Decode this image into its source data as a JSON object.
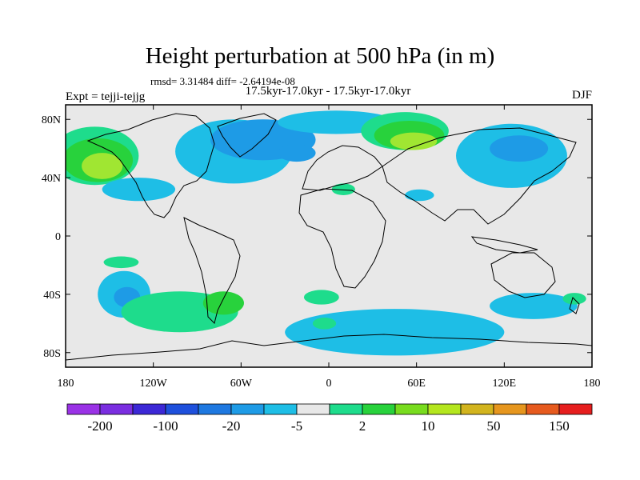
{
  "header": {
    "title": "Height perturbation at 500 hPa (in m)",
    "stats": "rmsd= 3.31484 diff= -2.64194e-08",
    "subtitle": "17.5kyr-17.0kyr - 17.5kyr-17.0kyr",
    "left_label": "Expt = tejji-tejjg",
    "right_label": "DJF"
  },
  "chart_data": {
    "type": "heatmap",
    "title": "Height perturbation at 500 hPa (in m)",
    "projection": "cylindrical-equidistant",
    "xlim": [
      -180,
      180
    ],
    "ylim": [
      -90,
      90
    ],
    "x_ticks": [
      {
        "value": -180,
        "label": "180"
      },
      {
        "value": -120,
        "label": "120W"
      },
      {
        "value": -60,
        "label": "60W"
      },
      {
        "value": 0,
        "label": "0"
      },
      {
        "value": 60,
        "label": "60E"
      },
      {
        "value": 120,
        "label": "120E"
      },
      {
        "value": 180,
        "label": "180"
      }
    ],
    "y_ticks": [
      {
        "value": 80,
        "label": "80N"
      },
      {
        "value": 40,
        "label": "40N"
      },
      {
        "value": 0,
        "label": "0"
      },
      {
        "value": -40,
        "label": "40S"
      },
      {
        "value": -80,
        "label": "80S"
      }
    ],
    "background_color": "#e8e8e8",
    "colorbar": {
      "levels": [
        "-200",
        "-100",
        "-20",
        "-5",
        "2",
        "10",
        "50",
        "150"
      ],
      "colors": [
        "#9a32e6",
        "#7a2ee0",
        "#3c28d6",
        "#1e50dc",
        "#1e78e0",
        "#1e9be6",
        "#1ebee6",
        "#e8e8e8",
        "#1edc8c",
        "#28d23c",
        "#78dc1e",
        "#b4e61e",
        "#d2b41e",
        "#e6961e",
        "#e65a1e",
        "#e61e1e"
      ]
    },
    "regions": [
      {
        "value": 5,
        "color": "#1edc8c",
        "cx": -160,
        "cy": 55,
        "rx": 30,
        "ry": 20
      },
      {
        "value": 12,
        "color": "#28d23c",
        "cx": -158,
        "cy": 52,
        "rx": 24,
        "ry": 15
      },
      {
        "value": 15,
        "color": "#a0e632",
        "cx": -155,
        "cy": 48,
        "rx": 14,
        "ry": 9
      },
      {
        "value": -3,
        "color": "#1ebee6",
        "cx": -130,
        "cy": 32,
        "rx": 25,
        "ry": 8
      },
      {
        "value": -3,
        "color": "#1ebee6",
        "cx": -65,
        "cy": 58,
        "rx": 40,
        "ry": 22
      },
      {
        "value": -10,
        "color": "#1e9be6",
        "cx": -45,
        "cy": 66,
        "rx": 36,
        "ry": 14
      },
      {
        "value": -3,
        "color": "#1ebee6",
        "cx": 5,
        "cy": 78,
        "rx": 40,
        "ry": 8
      },
      {
        "value": -10,
        "color": "#1e9be6",
        "cx": -22,
        "cy": 57,
        "rx": 13,
        "ry": 6
      },
      {
        "value": 5,
        "color": "#1edc8c",
        "cx": 52,
        "cy": 72,
        "rx": 30,
        "ry": 13
      },
      {
        "value": 12,
        "color": "#28d23c",
        "cx": 55,
        "cy": 69,
        "rx": 24,
        "ry": 10
      },
      {
        "value": 15,
        "color": "#a0e632",
        "cx": 58,
        "cy": 65,
        "rx": 16,
        "ry": 6
      },
      {
        "value": -3,
        "color": "#1ebee6",
        "cx": 125,
        "cy": 55,
        "rx": 38,
        "ry": 22
      },
      {
        "value": -10,
        "color": "#1e9be6",
        "cx": 130,
        "cy": 60,
        "rx": 20,
        "ry": 9
      },
      {
        "value": -3,
        "color": "#1ebee6",
        "cx": 62,
        "cy": 28,
        "rx": 10,
        "ry": 4
      },
      {
        "value": 5,
        "color": "#1edc8c",
        "cx": 10,
        "cy": 32,
        "rx": 8,
        "ry": 4
      },
      {
        "value": 5,
        "color": "#1edc8c",
        "cx": -142,
        "cy": -18,
        "rx": 12,
        "ry": 4
      },
      {
        "value": -3,
        "color": "#1ebee6",
        "cx": -140,
        "cy": -40,
        "rx": 18,
        "ry": 16
      },
      {
        "value": -10,
        "color": "#1e9be6",
        "cx": -138,
        "cy": -42,
        "rx": 9,
        "ry": 7
      },
      {
        "value": 5,
        "color": "#1edc8c",
        "cx": -102,
        "cy": -52,
        "rx": 40,
        "ry": 14
      },
      {
        "value": 12,
        "color": "#28d23c",
        "cx": -72,
        "cy": -46,
        "rx": 14,
        "ry": 8
      },
      {
        "value": 5,
        "color": "#1edc8c",
        "cx": -5,
        "cy": -42,
        "rx": 12,
        "ry": 5
      },
      {
        "value": -3,
        "color": "#1ebee6",
        "cx": 45,
        "cy": -66,
        "rx": 75,
        "ry": 16
      },
      {
        "value": 5,
        "color": "#1edc8c",
        "cx": -3,
        "cy": -60,
        "rx": 8,
        "ry": 4
      },
      {
        "value": -3,
        "color": "#1ebee6",
        "cx": 140,
        "cy": -48,
        "rx": 30,
        "ry": 9
      },
      {
        "value": 5,
        "color": "#1edc8c",
        "cx": 168,
        "cy": -43,
        "rx": 8,
        "ry": 4
      }
    ]
  }
}
